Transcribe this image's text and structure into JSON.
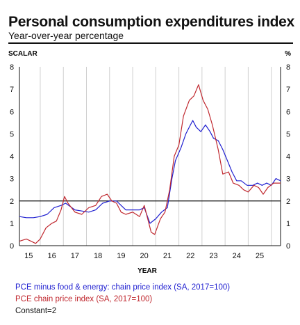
{
  "header": {
    "title": "Personal consumption expenditures index",
    "subtitle": "Year-over-year percentage"
  },
  "chart_data": {
    "type": "line",
    "left_axis_label": "SCALAR",
    "right_axis_label": "%",
    "xlabel": "YEAR",
    "ylim": [
      0,
      8
    ],
    "y_ticks": [
      "0",
      "1",
      "2",
      "3",
      "4",
      "5",
      "6",
      "7",
      "8"
    ],
    "x_range": [
      2014.6,
      2025.9
    ],
    "x_ticks": [
      {
        "label": "15",
        "value": 2015.0
      },
      {
        "label": "16",
        "value": 2016.0
      },
      {
        "label": "17",
        "value": 2017.0
      },
      {
        "label": "18",
        "value": 2018.0
      },
      {
        "label": "19",
        "value": 2019.0
      },
      {
        "label": "20",
        "value": 2020.0
      },
      {
        "label": "21",
        "value": 2021.0
      },
      {
        "label": "22",
        "value": 2022.0
      },
      {
        "label": "23",
        "value": 2023.0
      },
      {
        "label": "24",
        "value": 2024.0
      },
      {
        "label": "25",
        "value": 2025.0
      }
    ],
    "grid_x": [
      2015.5,
      2016.5,
      2017.5,
      2018.5,
      2019.5,
      2020.5,
      2021.5,
      2022.5,
      2023.5,
      2024.5,
      2025.5
    ],
    "series": [
      {
        "name": "PCE minus food & energy: chain price index (SA, 2017=100)",
        "color": "#1f1fd0",
        "points": [
          [
            2014.6,
            1.3
          ],
          [
            2014.9,
            1.25
          ],
          [
            2015.2,
            1.25
          ],
          [
            2015.5,
            1.3
          ],
          [
            2015.8,
            1.4
          ],
          [
            2016.1,
            1.7
          ],
          [
            2016.4,
            1.8
          ],
          [
            2016.6,
            1.9
          ],
          [
            2016.8,
            1.75
          ],
          [
            2017.0,
            1.6
          ],
          [
            2017.3,
            1.55
          ],
          [
            2017.6,
            1.5
          ],
          [
            2017.9,
            1.6
          ],
          [
            2018.2,
            1.9
          ],
          [
            2018.5,
            2.0
          ],
          [
            2018.8,
            2.0
          ],
          [
            2019.0,
            1.8
          ],
          [
            2019.2,
            1.6
          ],
          [
            2019.5,
            1.6
          ],
          [
            2019.8,
            1.6
          ],
          [
            2020.0,
            1.7
          ],
          [
            2020.25,
            1.0
          ],
          [
            2020.5,
            1.2
          ],
          [
            2020.75,
            1.5
          ],
          [
            2021.0,
            1.7
          ],
          [
            2021.2,
            3.0
          ],
          [
            2021.35,
            3.8
          ],
          [
            2021.6,
            4.4
          ],
          [
            2021.8,
            5.0
          ],
          [
            2022.0,
            5.4
          ],
          [
            2022.1,
            5.6
          ],
          [
            2022.25,
            5.3
          ],
          [
            2022.45,
            5.1
          ],
          [
            2022.65,
            5.4
          ],
          [
            2022.85,
            5.1
          ],
          [
            2023.0,
            4.8
          ],
          [
            2023.2,
            4.7
          ],
          [
            2023.4,
            4.3
          ],
          [
            2023.6,
            3.8
          ],
          [
            2023.8,
            3.3
          ],
          [
            2024.0,
            2.9
          ],
          [
            2024.2,
            2.9
          ],
          [
            2024.45,
            2.7
          ],
          [
            2024.7,
            2.7
          ],
          [
            2024.9,
            2.8
          ],
          [
            2025.1,
            2.7
          ],
          [
            2025.3,
            2.8
          ],
          [
            2025.5,
            2.7
          ],
          [
            2025.7,
            3.0
          ],
          [
            2025.9,
            2.9
          ]
        ]
      },
      {
        "name": "PCE chain price index (SA, 2017=100)",
        "color": "#c0282f",
        "points": [
          [
            2014.6,
            0.2
          ],
          [
            2014.9,
            0.3
          ],
          [
            2015.1,
            0.2
          ],
          [
            2015.3,
            0.1
          ],
          [
            2015.5,
            0.3
          ],
          [
            2015.75,
            0.8
          ],
          [
            2016.0,
            1.0
          ],
          [
            2016.2,
            1.1
          ],
          [
            2016.4,
            1.6
          ],
          [
            2016.55,
            2.2
          ],
          [
            2016.7,
            1.9
          ],
          [
            2017.0,
            1.5
          ],
          [
            2017.3,
            1.4
          ],
          [
            2017.6,
            1.7
          ],
          [
            2017.9,
            1.8
          ],
          [
            2018.15,
            2.2
          ],
          [
            2018.4,
            2.3
          ],
          [
            2018.6,
            2.0
          ],
          [
            2018.8,
            1.9
          ],
          [
            2019.0,
            1.5
          ],
          [
            2019.2,
            1.4
          ],
          [
            2019.5,
            1.5
          ],
          [
            2019.8,
            1.3
          ],
          [
            2020.0,
            1.8
          ],
          [
            2020.3,
            0.6
          ],
          [
            2020.45,
            0.5
          ],
          [
            2020.7,
            1.2
          ],
          [
            2020.9,
            1.5
          ],
          [
            2021.1,
            2.5
          ],
          [
            2021.3,
            4.0
          ],
          [
            2021.5,
            4.5
          ],
          [
            2021.7,
            5.8
          ],
          [
            2021.95,
            6.5
          ],
          [
            2022.15,
            6.7
          ],
          [
            2022.35,
            7.2
          ],
          [
            2022.55,
            6.5
          ],
          [
            2022.75,
            6.1
          ],
          [
            2022.95,
            5.4
          ],
          [
            2023.2,
            4.3
          ],
          [
            2023.4,
            3.2
          ],
          [
            2023.65,
            3.3
          ],
          [
            2023.85,
            2.8
          ],
          [
            2024.1,
            2.7
          ],
          [
            2024.3,
            2.5
          ],
          [
            2024.5,
            2.4
          ],
          [
            2024.75,
            2.7
          ],
          [
            2024.95,
            2.6
          ],
          [
            2025.15,
            2.3
          ],
          [
            2025.35,
            2.6
          ],
          [
            2025.6,
            2.8
          ],
          [
            2025.9,
            2.8
          ]
        ]
      }
    ],
    "constant": {
      "name": "Constant=2",
      "value": 2,
      "color": "#111111"
    },
    "legend_position": "bottom-left"
  },
  "colors": {
    "grid": "#cfcfcf",
    "axis": "#111111",
    "blue": "#1f1fd0",
    "red": "#c0282f"
  }
}
